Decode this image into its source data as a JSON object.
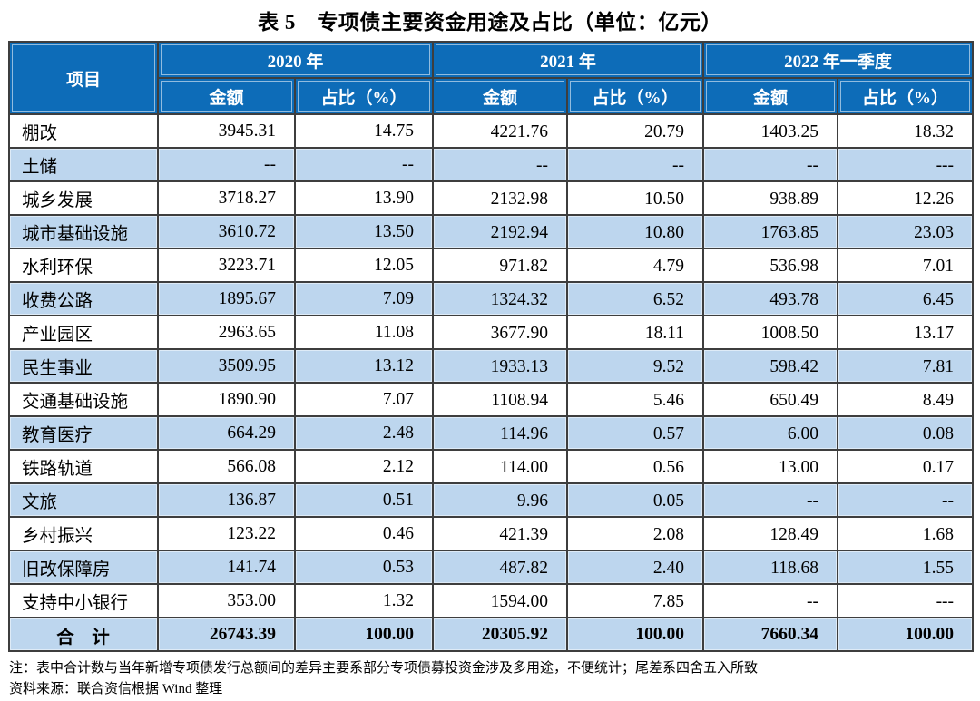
{
  "title": "表 5　专项债主要资金用途及占比（单位：亿元）",
  "table": {
    "project_header": "项目",
    "group_headers": [
      "2020 年",
      "2021 年",
      "2022 年一季度"
    ],
    "sub_headers": {
      "amount": "金额",
      "share": "占比（%）"
    },
    "rows": [
      {
        "name": "棚改",
        "v": [
          "3945.31",
          "14.75",
          "4221.76",
          "20.79",
          "1403.25",
          "18.32"
        ]
      },
      {
        "name": "土储",
        "v": [
          "--",
          "--",
          "--",
          "--",
          "--",
          "---"
        ]
      },
      {
        "name": "城乡发展",
        "v": [
          "3718.27",
          "13.90",
          "2132.98",
          "10.50",
          "938.89",
          "12.26"
        ]
      },
      {
        "name": "城市基础设施",
        "v": [
          "3610.72",
          "13.50",
          "2192.94",
          "10.80",
          "1763.85",
          "23.03"
        ]
      },
      {
        "name": "水利环保",
        "v": [
          "3223.71",
          "12.05",
          "971.82",
          "4.79",
          "536.98",
          "7.01"
        ]
      },
      {
        "name": "收费公路",
        "v": [
          "1895.67",
          "7.09",
          "1324.32",
          "6.52",
          "493.78",
          "6.45"
        ]
      },
      {
        "name": "产业园区",
        "v": [
          "2963.65",
          "11.08",
          "3677.90",
          "18.11",
          "1008.50",
          "13.17"
        ]
      },
      {
        "name": "民生事业",
        "v": [
          "3509.95",
          "13.12",
          "1933.13",
          "9.52",
          "598.42",
          "7.81"
        ]
      },
      {
        "name": "交通基础设施",
        "v": [
          "1890.90",
          "7.07",
          "1108.94",
          "5.46",
          "650.49",
          "8.49"
        ]
      },
      {
        "name": "教育医疗",
        "v": [
          "664.29",
          "2.48",
          "114.96",
          "0.57",
          "6.00",
          "0.08"
        ]
      },
      {
        "name": "铁路轨道",
        "v": [
          "566.08",
          "2.12",
          "114.00",
          "0.56",
          "13.00",
          "0.17"
        ]
      },
      {
        "name": "文旅",
        "v": [
          "136.87",
          "0.51",
          "9.96",
          "0.05",
          "--",
          "--"
        ]
      },
      {
        "name": "乡村振兴",
        "v": [
          "123.22",
          "0.46",
          "421.39",
          "2.08",
          "128.49",
          "1.68"
        ]
      },
      {
        "name": "旧改保障房",
        "v": [
          "141.74",
          "0.53",
          "487.82",
          "2.40",
          "118.68",
          "1.55"
        ]
      },
      {
        "name": "支持中小银行",
        "v": [
          "353.00",
          "1.32",
          "1594.00",
          "7.85",
          "--",
          "---"
        ]
      }
    ],
    "total": {
      "name": "合　计",
      "v": [
        "26743.39",
        "100.00",
        "20305.92",
        "100.00",
        "7660.34",
        "100.00"
      ]
    }
  },
  "notes": {
    "note": "注：表中合计数与当年新增专项债发行总额间的差异主要系部分专项债募投资金涉及多用途，不便统计；尾差系四舍五入所致",
    "source": "资料来源：联合资信根据 Wind 整理"
  },
  "colors": {
    "header_bg": "#0d6cb8",
    "row_alt_bg": "#bdd6ee",
    "grid_border": "#3e3e3e",
    "header_text": "#ffffff",
    "body_text": "#000000"
  }
}
